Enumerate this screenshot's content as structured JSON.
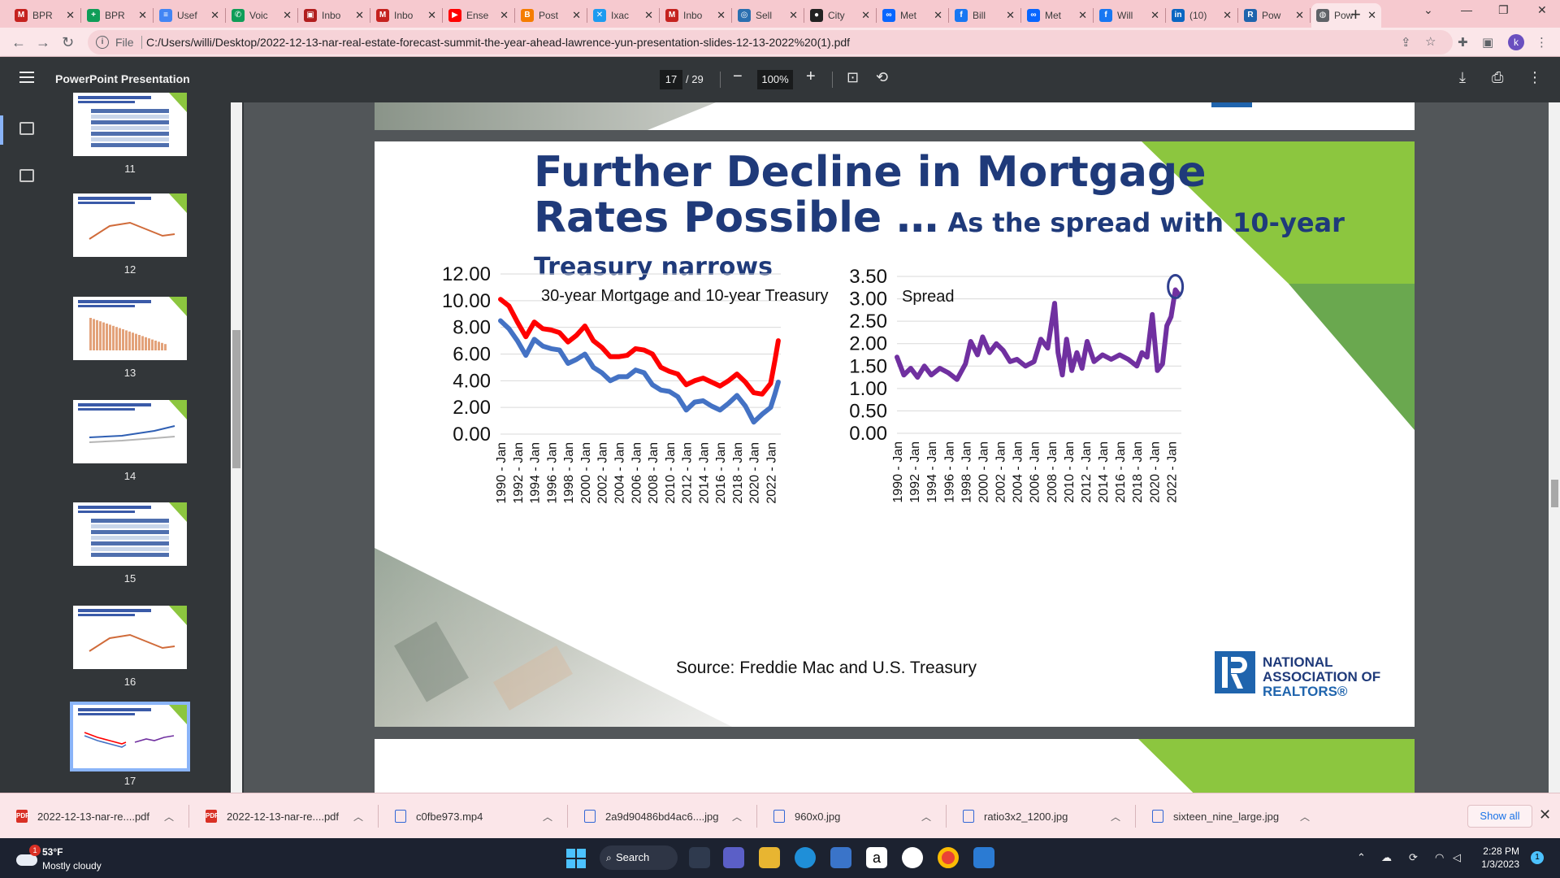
{
  "browser": {
    "tabs": [
      {
        "favicon": "gmail-icon",
        "label": "BPR",
        "color": "#c5221f",
        "glyph": "M"
      },
      {
        "favicon": "sheets-icon",
        "label": "BPR",
        "color": "#0f9d58",
        "glyph": "+"
      },
      {
        "favicon": "docs-icon",
        "label": "Usef",
        "color": "#4285f4",
        "glyph": "≡"
      },
      {
        "favicon": "voice-icon",
        "label": "Voic",
        "color": "#0f9d58",
        "glyph": "✆"
      },
      {
        "favicon": "dvr-icon",
        "label": "Inbo",
        "color": "#b11e1e",
        "glyph": "▣"
      },
      {
        "favicon": "gmail-icon",
        "label": "Inbo",
        "color": "#c5221f",
        "glyph": "M"
      },
      {
        "favicon": "youtube-icon",
        "label": "Ense",
        "color": "#ff0000",
        "glyph": "▶"
      },
      {
        "favicon": "blogger-icon",
        "label": "Post",
        "color": "#f57d00",
        "glyph": "B"
      },
      {
        "favicon": "x-icon",
        "label": "Ixac",
        "color": "#1d9bf0",
        "glyph": "✕"
      },
      {
        "favicon": "gmail-icon",
        "label": "Inbo",
        "color": "#c5221f",
        "glyph": "M"
      },
      {
        "favicon": "sell-icon",
        "label": "Sell",
        "color": "#2a6fb0",
        "glyph": "◎"
      },
      {
        "favicon": "city-icon",
        "label": "City",
        "color": "#222222",
        "glyph": "●"
      },
      {
        "favicon": "meta-icon",
        "label": "Met",
        "color": "#0866ff",
        "glyph": "∞"
      },
      {
        "favicon": "facebook-icon",
        "label": "Bill",
        "color": "#1877f2",
        "glyph": "f"
      },
      {
        "favicon": "meta-icon",
        "label": "Met",
        "color": "#0866ff",
        "glyph": "∞"
      },
      {
        "favicon": "facebook-icon",
        "label": "Will",
        "color": "#1877f2",
        "glyph": "f"
      },
      {
        "favicon": "linkedin-icon",
        "label": "(10)",
        "color": "#0a66c2",
        "glyph": "in"
      },
      {
        "favicon": "realtors-icon",
        "label": "Pow",
        "color": "#1f64ad",
        "glyph": "R"
      },
      {
        "favicon": "globe-icon",
        "label": "Pow",
        "color": "#5f6368",
        "glyph": "◍",
        "active": true
      }
    ],
    "address": {
      "scheme": "File",
      "url": "C:/Users/willi/Desktop/2022-12-13-nar-real-estate-forecast-summit-the-year-ahead-lawrence-yun-presentation-slides-12-13-2022%20(1).pdf"
    },
    "profile_initial": "k"
  },
  "pdf_viewer": {
    "title": "PowerPoint Presentation",
    "current_page": "17",
    "total_pages": "/ 29",
    "zoom": "100%",
    "thumbnails": [
      "11",
      "12",
      "13",
      "14",
      "15",
      "16",
      "17"
    ],
    "selected_thumbnail": "17"
  },
  "slide": {
    "title_line1": "Further Decline in Mortgage",
    "title_line2": "Rates Possible …",
    "title_suffix": " As the spread with 10-year",
    "title_line3": "Treasury narrows",
    "source": "Source: Freddie Mac and U.S. Treasury",
    "logo_text": [
      "NATIONAL",
      "ASSOCIATION OF",
      "REALTORS®"
    ],
    "colors": {
      "title": "#1f3a7a",
      "accent_green": "#8cc63f",
      "dark_green": "#6aa84f",
      "mortgage": "#ff0000",
      "treasury": "#4472c4",
      "spread": "#7030a0",
      "highlight_circle": "#2f3f8f"
    }
  },
  "chart_data": [
    {
      "type": "line",
      "title": "30-year Mortgage and 10-year Treasury",
      "ylim": [
        0,
        12
      ],
      "yticks": [
        "12.00",
        "10.00",
        "8.00",
        "6.00",
        "4.00",
        "2.00",
        "0.00"
      ],
      "xticks": [
        "1990 - Jan",
        "1992 - Jan",
        "1994 - Jan",
        "1996 - Jan",
        "1998 - Jan",
        "2000 - Jan",
        "2002 - Jan",
        "2004 - Jan",
        "2006 - Jan",
        "2008 - Jan",
        "2010 - Jan",
        "2012 - Jan",
        "2014 - Jan",
        "2016 - Jan",
        "2018 - Jan",
        "2020 - Jan",
        "2022 - Jan"
      ],
      "x": [
        1990,
        1991,
        1992,
        1993,
        1994,
        1995,
        1996,
        1997,
        1998,
        1999,
        2000,
        2001,
        2002,
        2003,
        2004,
        2005,
        2006,
        2007,
        2008,
        2009,
        2010,
        2011,
        2012,
        2013,
        2014,
        2015,
        2016,
        2017,
        2018,
        2019,
        2020,
        2021,
        2022,
        2022.5,
        2022.9
      ],
      "series": [
        {
          "values": [
            10.1,
            9.6,
            8.4,
            7.3,
            8.4,
            7.9,
            7.8,
            7.6,
            6.9,
            7.4,
            8.1,
            7.0,
            6.5,
            5.8,
            5.8,
            5.9,
            6.4,
            6.3,
            6.0,
            5.0,
            4.7,
            4.5,
            3.7,
            4.0,
            4.2,
            3.9,
            3.6,
            4.0,
            4.5,
            3.9,
            3.1,
            3.0,
            3.8,
            5.5,
            7.0
          ]
        },
        {
          "values": [
            8.5,
            7.9,
            7.0,
            5.9,
            7.1,
            6.6,
            6.4,
            6.3,
            5.3,
            5.6,
            6.0,
            5.0,
            4.6,
            4.0,
            4.3,
            4.3,
            4.8,
            4.6,
            3.7,
            3.3,
            3.2,
            2.8,
            1.8,
            2.4,
            2.5,
            2.1,
            1.8,
            2.3,
            2.9,
            2.1,
            0.9,
            1.5,
            2.0,
            3.0,
            3.9
          ]
        }
      ]
    },
    {
      "type": "line",
      "title": "Spread",
      "ylim": [
        0,
        3.5
      ],
      "yticks": [
        "3.50",
        "3.00",
        "2.50",
        "2.00",
        "1.50",
        "1.00",
        "0.50",
        "0.00"
      ],
      "xticks": [
        "1990 - Jan",
        "1992 - Jan",
        "1994 - Jan",
        "1996 - Jan",
        "1998 - Jan",
        "2000 - Jan",
        "2002 - Jan",
        "2004 - Jan",
        "2006 - Jan",
        "2008 - Jan",
        "2010 - Jan",
        "2012 - Jan",
        "2014 - Jan",
        "2016 - Jan",
        "2018 - Jan",
        "2020 - Jan",
        "2022 - Jan"
      ],
      "x": [
        1990,
        1990.8,
        1991.6,
        1992.4,
        1993.2,
        1994,
        1995,
        1996,
        1997,
        1998,
        1998.6,
        1999.4,
        2000,
        2000.8,
        2001.6,
        2002.4,
        2003.2,
        2004,
        2005,
        2006,
        2006.8,
        2007.6,
        2008.4,
        2008.8,
        2009.3,
        2009.8,
        2010.4,
        2011,
        2011.6,
        2012.2,
        2013,
        2014,
        2015,
        2016,
        2017,
        2018,
        2018.6,
        2019.2,
        2019.8,
        2020.4,
        2021,
        2021.5,
        2022,
        2022.5,
        2022.9
      ],
      "series": [
        {
          "values": [
            1.7,
            1.3,
            1.45,
            1.25,
            1.5,
            1.3,
            1.45,
            1.35,
            1.2,
            1.55,
            2.05,
            1.75,
            2.15,
            1.8,
            2.0,
            1.85,
            1.6,
            1.65,
            1.5,
            1.6,
            2.1,
            1.9,
            2.9,
            1.8,
            1.3,
            2.1,
            1.4,
            1.8,
            1.45,
            2.05,
            1.6,
            1.75,
            1.65,
            1.75,
            1.65,
            1.5,
            1.8,
            1.7,
            2.65,
            1.4,
            1.55,
            2.4,
            2.6,
            3.2,
            3.1
          ]
        }
      ]
    }
  ],
  "downloads": [
    {
      "type": "pdf",
      "name": "2022-12-13-nar-re....pdf"
    },
    {
      "type": "pdf",
      "name": "2022-12-13-nar-re....pdf"
    },
    {
      "type": "doc",
      "name": "c0fbe973.mp4"
    },
    {
      "type": "doc",
      "name": "2a9d90486bd4ac6....jpg"
    },
    {
      "type": "doc",
      "name": "960x0.jpg"
    },
    {
      "type": "doc",
      "name": "ratio3x2_1200.jpg"
    },
    {
      "type": "doc",
      "name": "sixteen_nine_large.jpg"
    }
  ],
  "shelf": {
    "show_all": "Show all"
  },
  "taskbar": {
    "weather_badge": "1",
    "weather_temp": "53°F",
    "weather_desc": "Mostly cloudy",
    "search_label": "Search",
    "time": "2:28 PM",
    "date": "1/3/2023",
    "notifications": "1"
  }
}
